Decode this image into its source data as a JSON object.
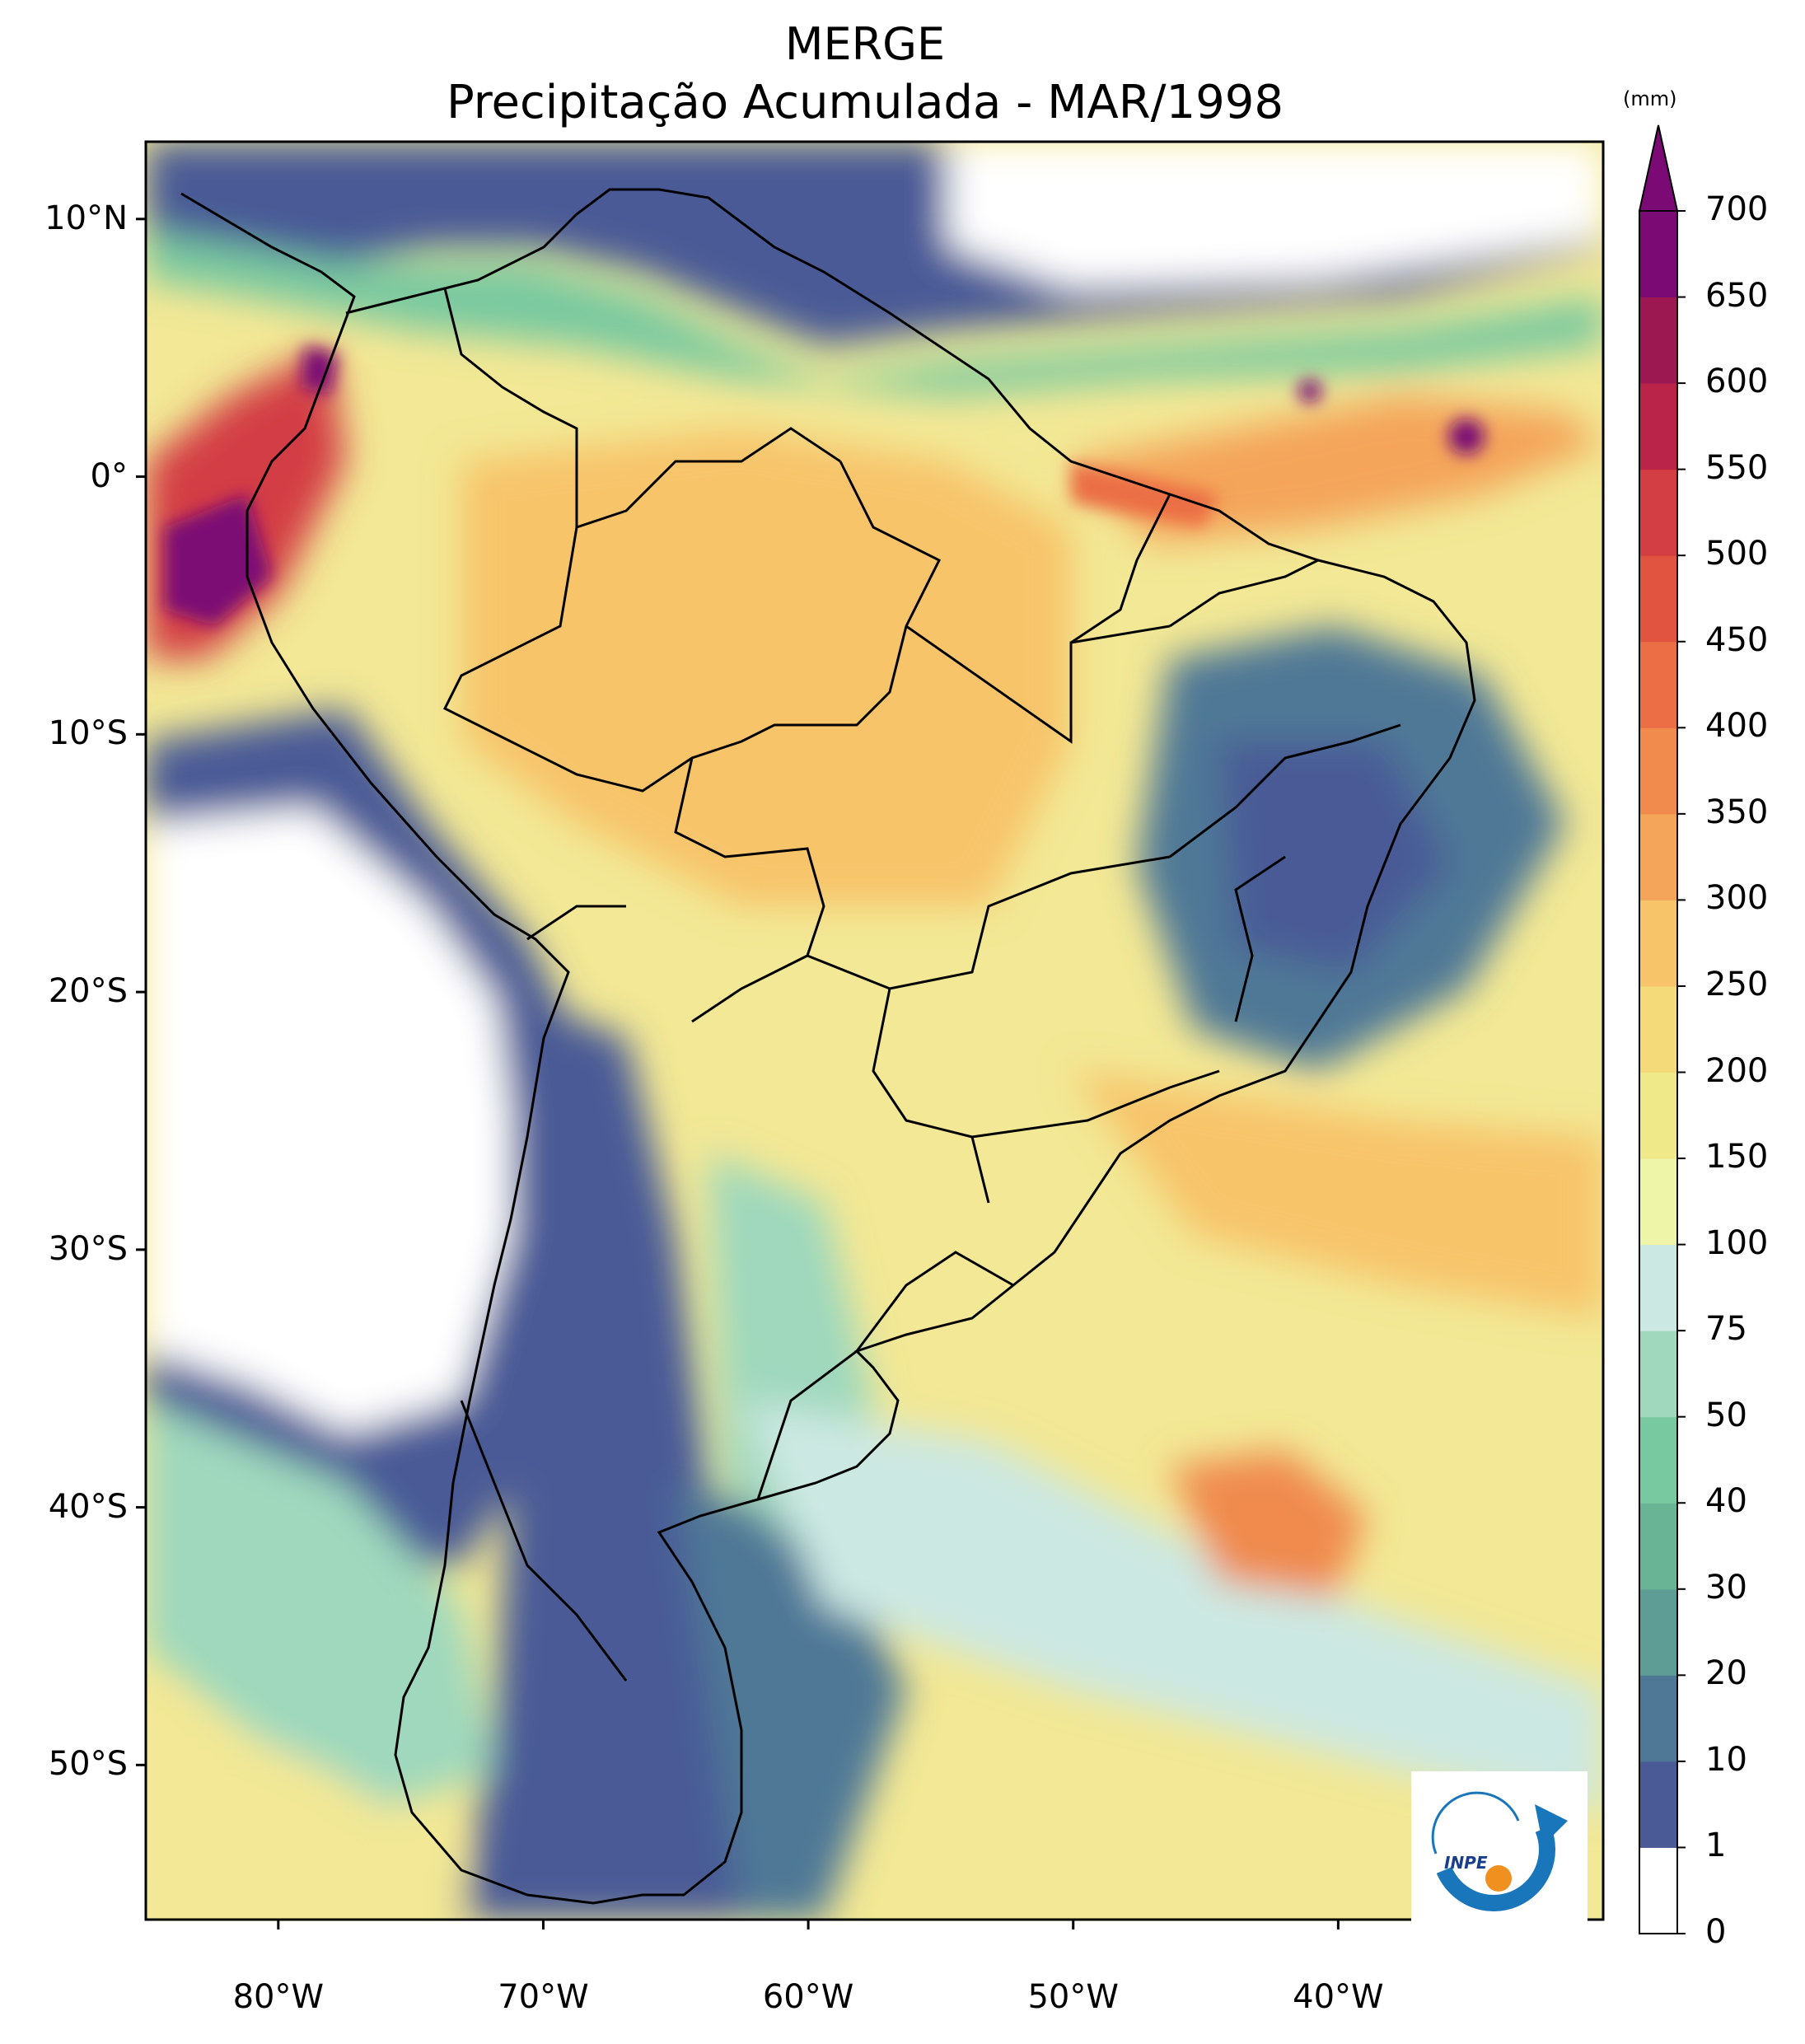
{
  "title": {
    "line1": "MERGE",
    "line2": "Precipitação Acumulada - MAR/1998"
  },
  "map": {
    "extent_lon": [
      -85,
      -30
    ],
    "extent_lat": [
      -56,
      13
    ],
    "lat_ticks": [
      {
        "value": 10,
        "label": "10°N"
      },
      {
        "value": 0,
        "label": "0°"
      },
      {
        "value": -10,
        "label": "10°S"
      },
      {
        "value": -20,
        "label": "20°S"
      },
      {
        "value": -30,
        "label": "30°S"
      },
      {
        "value": -40,
        "label": "40°S"
      },
      {
        "value": -50,
        "label": "50°S"
      }
    ],
    "lon_ticks": [
      {
        "value": -80,
        "label": "80°W"
      },
      {
        "value": -70,
        "label": "70°W"
      },
      {
        "value": -60,
        "label": "60°W"
      },
      {
        "value": -50,
        "label": "50°W"
      },
      {
        "value": -40,
        "label": "40°W"
      }
    ]
  },
  "colorbar": {
    "unit": "(mm)",
    "levels": [
      "0",
      "1",
      "10",
      "20",
      "30",
      "40",
      "50",
      "75",
      "100",
      "150",
      "200",
      "250",
      "300",
      "350",
      "400",
      "450",
      "500",
      "550",
      "600",
      "650",
      "700"
    ],
    "colors": [
      "#ffffff",
      "#4a5a96",
      "#4f7896",
      "#5e9d96",
      "#6ab496",
      "#79c9a0",
      "#9fd8bd",
      "#cce8e2",
      "#eef5a8",
      "#f0e98a",
      "#f5da7a",
      "#f7c46a",
      "#f4a55a",
      "#f08a4d",
      "#eb6e44",
      "#e15440",
      "#d33e44",
      "#bb2449",
      "#9b1851",
      "#7b0a75"
    ],
    "extend_color": "#7b0a75"
  },
  "logo": {
    "text": "INPE"
  }
}
